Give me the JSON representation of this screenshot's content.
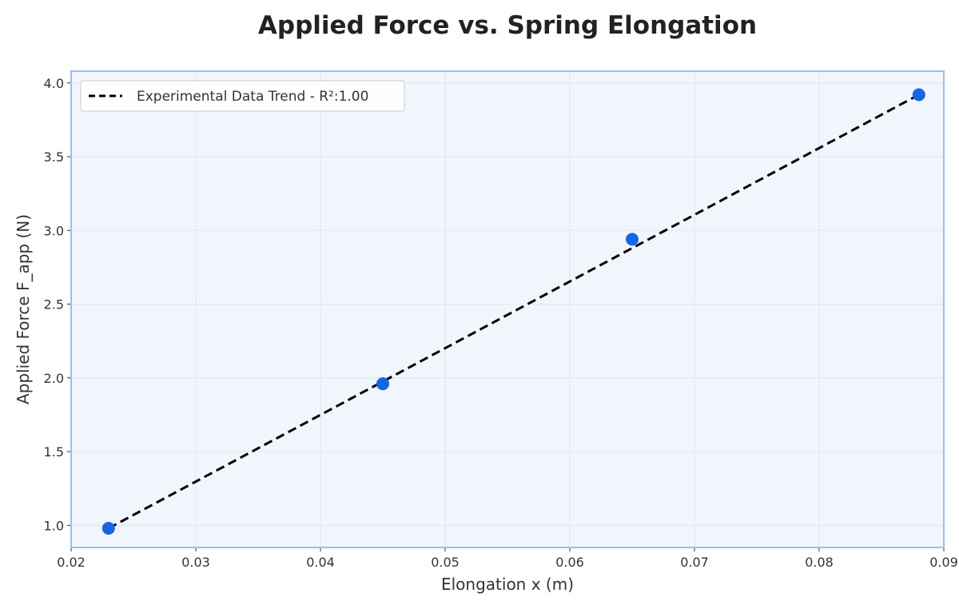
{
  "chart_data": {
    "type": "scatter",
    "title": "Applied Force vs. Spring Elongation",
    "xlabel": "Elongation x (m)",
    "ylabel": "Applied Force F_app (N)",
    "xlim": [
      0.02,
      0.09
    ],
    "ylim": [
      0.85,
      4.08
    ],
    "xticks": [
      0.02,
      0.03,
      0.04,
      0.05,
      0.06,
      0.07,
      0.08,
      0.09
    ],
    "xtick_labels": [
      "0.02",
      "0.03",
      "0.04",
      "0.05",
      "0.06",
      "0.07",
      "0.08",
      "0.09"
    ],
    "yticks": [
      1.0,
      1.5,
      2.0,
      2.5,
      3.0,
      3.5,
      4.0
    ],
    "ytick_labels": [
      "1.0",
      "1.5",
      "2.0",
      "2.5",
      "3.0",
      "3.5",
      "4.0"
    ],
    "grid": true,
    "legend_position": "top-left",
    "series": [
      {
        "name": "",
        "kind": "scatter",
        "color": "#1565e8",
        "x": [
          0.023,
          0.045,
          0.065,
          0.088
        ],
        "y": [
          0.98,
          1.96,
          2.94,
          3.92
        ]
      },
      {
        "name": "Experimental Data Trend - R²:1.00",
        "kind": "line",
        "style": "dashed",
        "color": "#000000",
        "x": [
          0.023,
          0.088
        ],
        "y": [
          0.98,
          3.92
        ]
      }
    ],
    "colors": {
      "plot_background": "#f1f6fd",
      "plot_border": "#9dbdee",
      "grid": "#dde6f5"
    }
  }
}
